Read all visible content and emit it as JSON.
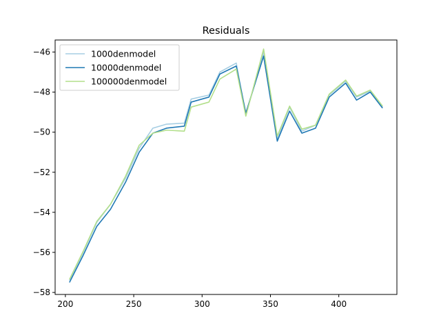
{
  "chart_data": {
    "type": "line",
    "title": "Residuals",
    "xlabel": "",
    "ylabel": "",
    "xlim": [
      192.5,
      442.5
    ],
    "ylim": [
      -58.1,
      -45.4
    ],
    "xticks": [
      200,
      250,
      300,
      350,
      400
    ],
    "xtick_labels": [
      "200",
      "250",
      "300",
      "350",
      "400"
    ],
    "yticks": [
      -58,
      -56,
      -54,
      -52,
      -50,
      -48,
      -46
    ],
    "ytick_labels": [
      "−58",
      "−56",
      "−54",
      "−52",
      "−50",
      "−48",
      "−46"
    ],
    "grid": false,
    "legend_position": "top-left",
    "x": [
      203,
      213,
      223,
      233,
      244,
      254,
      264,
      274,
      287,
      292,
      305,
      313,
      325,
      332,
      345,
      355,
      364,
      373,
      383,
      393,
      405,
      413,
      423,
      432
    ],
    "series": [
      {
        "name": "1000denmodel",
        "color": "#a6cee3",
        "values": [
          -57.4,
          -56.0,
          -54.5,
          -53.6,
          -52.3,
          -50.8,
          -49.8,
          -49.6,
          -49.55,
          -48.35,
          -48.15,
          -47.0,
          -46.55,
          -49.15,
          -46.0,
          -50.35,
          -48.75,
          -49.95,
          -49.65,
          -48.15,
          -47.45,
          -48.25,
          -47.95,
          -48.75
        ]
      },
      {
        "name": "10000denmodel",
        "color": "#1f78b4",
        "values": [
          -57.5,
          -56.15,
          -54.7,
          -53.85,
          -52.5,
          -51.0,
          -50.05,
          -49.8,
          -49.7,
          -48.5,
          -48.25,
          -47.1,
          -46.7,
          -49.05,
          -46.2,
          -50.45,
          -48.95,
          -50.05,
          -49.8,
          -48.25,
          -47.55,
          -48.4,
          -48.0,
          -48.8
        ]
      },
      {
        "name": "100000denmodel",
        "color": "#b2df8a",
        "values": [
          -57.35,
          -55.95,
          -54.45,
          -53.6,
          -52.2,
          -50.65,
          -50.05,
          -49.9,
          -49.95,
          -48.75,
          -48.5,
          -47.35,
          -46.85,
          -49.2,
          -45.85,
          -50.2,
          -48.7,
          -49.85,
          -49.65,
          -48.1,
          -47.4,
          -48.2,
          -47.9,
          -48.7
        ]
      }
    ]
  }
}
